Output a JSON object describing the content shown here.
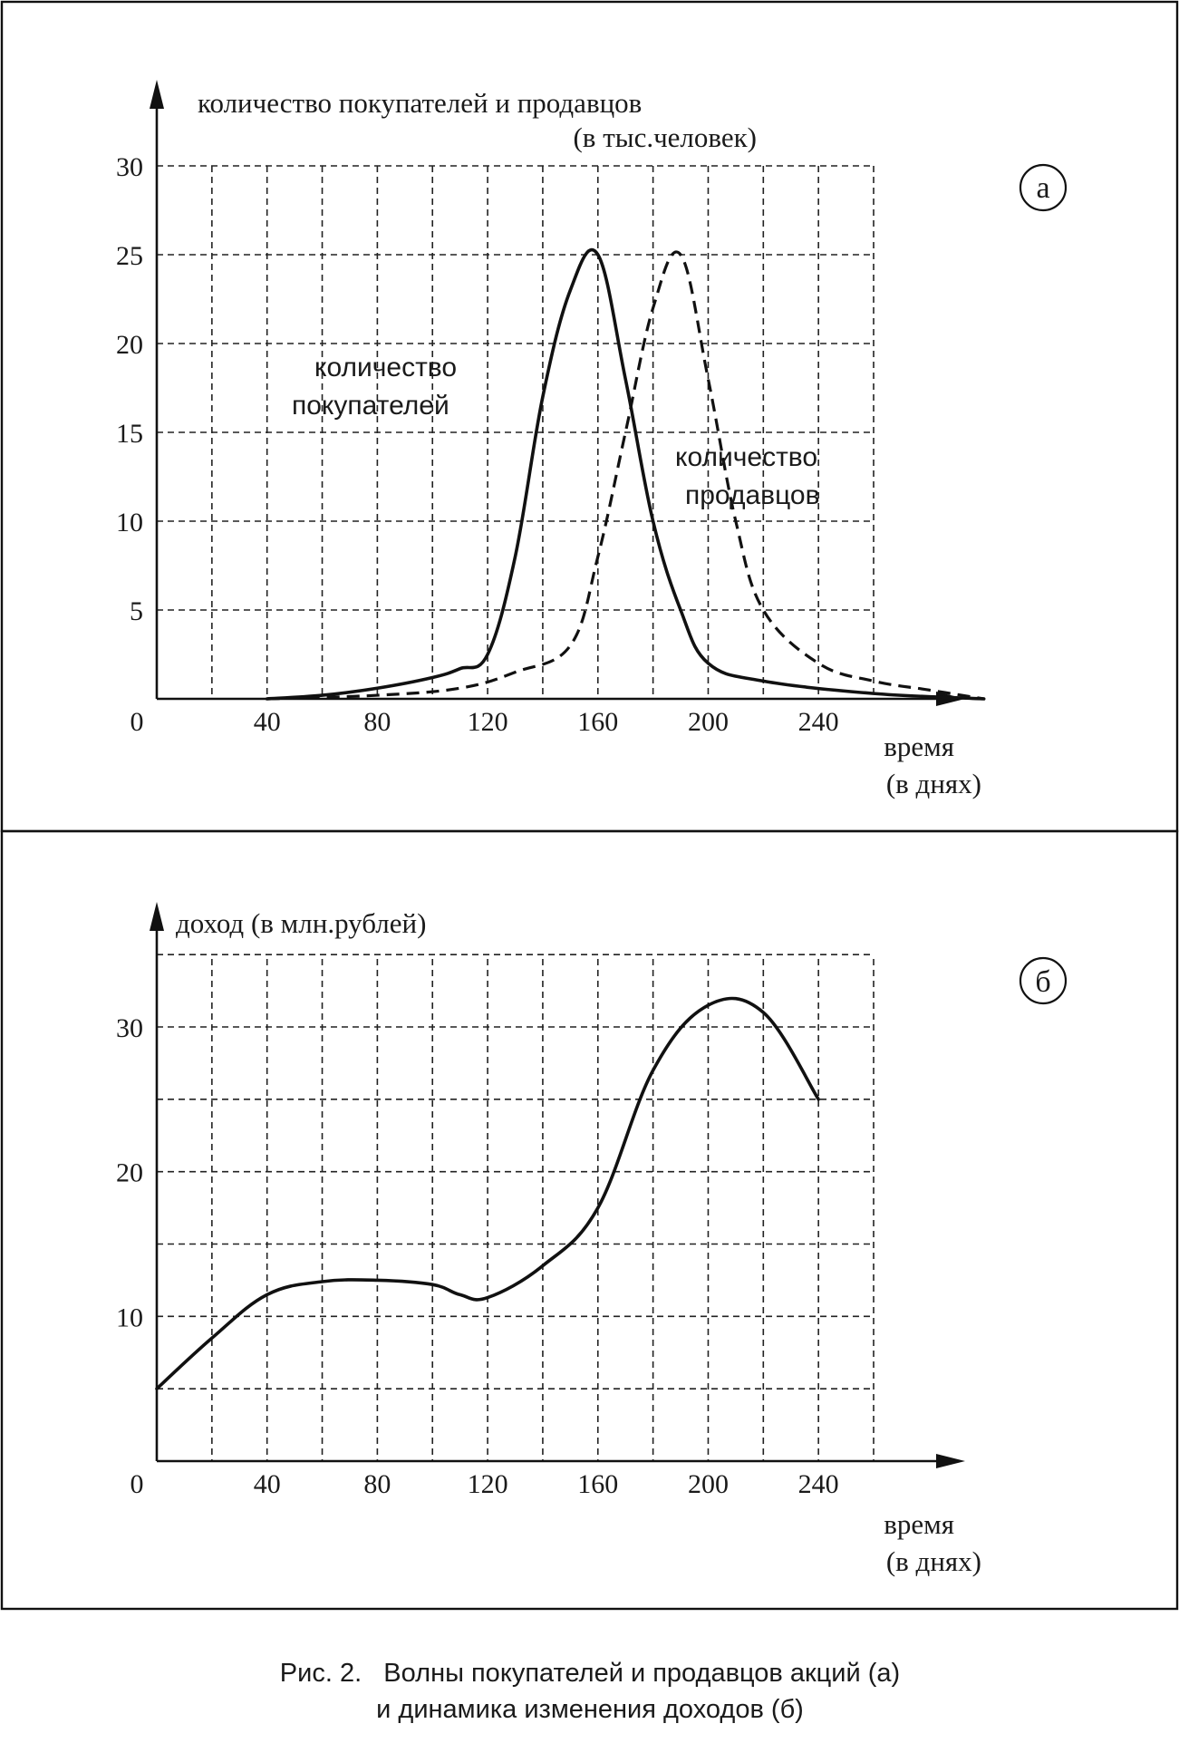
{
  "chart_data": [
    {
      "panel_label": "а",
      "type": "line",
      "ylabel_line1": "количество покупателей и продавцов",
      "ylabel_line2": "(в тыс.человек)",
      "xlabel_line1": "время",
      "xlabel_line2": "(в днях)",
      "xlim": [
        0,
        300
      ],
      "ylim": [
        0,
        30
      ],
      "x_ticks": [
        0,
        40,
        80,
        120,
        160,
        200,
        240
      ],
      "y_ticks": [
        5,
        10,
        15,
        20,
        25,
        30
      ],
      "grid": true,
      "series": [
        {
          "name_line1": "количество",
          "name_line2": "покупателей",
          "style": "solid",
          "points": [
            [
              40,
              0
            ],
            [
              60,
              0.2
            ],
            [
              80,
              0.6
            ],
            [
              100,
              1.2
            ],
            [
              110,
              1.7
            ],
            [
              120,
              2.5
            ],
            [
              130,
              8
            ],
            [
              140,
              17
            ],
            [
              150,
              23
            ],
            [
              160,
              25
            ],
            [
              170,
              18
            ],
            [
              180,
              10
            ],
            [
              190,
              5
            ],
            [
              200,
              2
            ],
            [
              220,
              1
            ],
            [
              260,
              0.3
            ],
            [
              300,
              0
            ]
          ]
        },
        {
          "name_line1": "количество",
          "name_line2": "продавцов",
          "style": "dashed",
          "points": [
            [
              40,
              0
            ],
            [
              80,
              0.2
            ],
            [
              110,
              0.6
            ],
            [
              130,
              1.5
            ],
            [
              150,
              3
            ],
            [
              160,
              8
            ],
            [
              170,
              15
            ],
            [
              180,
              22
            ],
            [
              190,
              25
            ],
            [
              200,
              18
            ],
            [
              210,
              10
            ],
            [
              220,
              5
            ],
            [
              240,
              2
            ],
            [
              260,
              1
            ],
            [
              280,
              0.5
            ],
            [
              300,
              0
            ]
          ]
        }
      ]
    },
    {
      "panel_label": "б",
      "type": "line",
      "ylabel_line1": "доход (в млн.рублей)",
      "xlabel_line1": "время",
      "xlabel_line2": "(в днях)",
      "xlim": [
        0,
        300
      ],
      "ylim": [
        0,
        35
      ],
      "x_ticks": [
        0,
        40,
        80,
        120,
        160,
        200,
        240
      ],
      "y_ticks": [
        10,
        20,
        30
      ],
      "grid": true,
      "series": [
        {
          "style": "solid",
          "points": [
            [
              0,
              5
            ],
            [
              20,
              8.5
            ],
            [
              40,
              11.5
            ],
            [
              60,
              12.4
            ],
            [
              80,
              12.5
            ],
            [
              100,
              12.2
            ],
            [
              110,
              11.5
            ],
            [
              120,
              11.3
            ],
            [
              140,
              13.5
            ],
            [
              160,
              17.5
            ],
            [
              180,
              27
            ],
            [
              200,
              31.5
            ],
            [
              220,
              31
            ],
            [
              240,
              25
            ]
          ]
        }
      ]
    }
  ],
  "caption": {
    "line1": "Рис. 2.   Волны покупателей и продавцов акций (а)",
    "line2": "и динамика изменения доходов (б)"
  }
}
